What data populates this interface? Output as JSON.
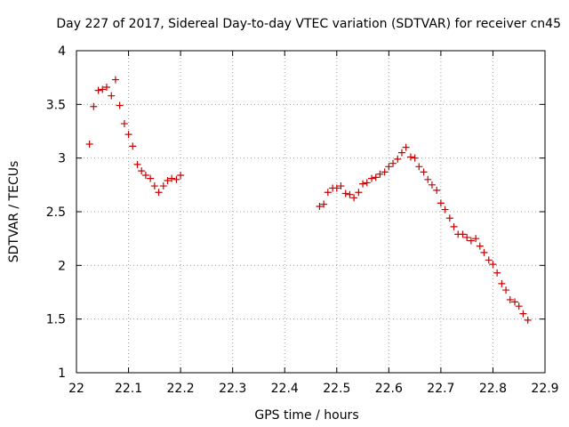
{
  "chart_data": {
    "type": "scatter",
    "title": "Day 227 of 2017, Sidereal Day-to-day VTEC variation (SDTVAR) for receiver cn45",
    "xlabel": "GPS time / hours",
    "ylabel": "SDTVAR / TECUs",
    "xlim": [
      22,
      22.9
    ],
    "ylim": [
      1,
      4
    ],
    "grid": true,
    "marker": "+",
    "color": "#cc0000",
    "xticks": [
      {
        "value": 22,
        "label": "22"
      },
      {
        "value": 22.1,
        "label": "22.1"
      },
      {
        "value": 22.2,
        "label": "22.2"
      },
      {
        "value": 22.3,
        "label": "22.3"
      },
      {
        "value": 22.4,
        "label": "22.4"
      },
      {
        "value": 22.5,
        "label": "22.5"
      },
      {
        "value": 22.6,
        "label": "22.6"
      },
      {
        "value": 22.7,
        "label": "22.7"
      },
      {
        "value": 22.8,
        "label": "22.8"
      },
      {
        "value": 22.9,
        "label": "22.9"
      }
    ],
    "yticks": [
      {
        "value": 1,
        "label": "1"
      },
      {
        "value": 1.5,
        "label": "1.5"
      },
      {
        "value": 2,
        "label": "2"
      },
      {
        "value": 2.5,
        "label": "2.5"
      },
      {
        "value": 3,
        "label": "3"
      },
      {
        "value": 3.5,
        "label": "3.5"
      },
      {
        "value": 4,
        "label": "4"
      }
    ],
    "series": [
      {
        "name": "SDTVAR",
        "x": [
          22.025,
          22.033,
          22.042,
          22.05,
          22.058,
          22.067,
          22.075,
          22.083,
          22.092,
          22.1,
          22.108,
          22.117,
          22.125,
          22.133,
          22.142,
          22.15,
          22.158,
          22.167,
          22.175,
          22.183,
          22.192,
          22.2,
          22.467,
          22.475,
          22.483,
          22.492,
          22.5,
          22.508,
          22.517,
          22.525,
          22.533,
          22.542,
          22.55,
          22.558,
          22.567,
          22.575,
          22.583,
          22.592,
          22.6,
          22.608,
          22.617,
          22.625,
          22.633,
          22.642,
          22.65,
          22.658,
          22.667,
          22.675,
          22.683,
          22.692,
          22.7,
          22.708,
          22.717,
          22.725,
          22.733,
          22.742,
          22.75,
          22.758,
          22.767,
          22.775,
          22.783,
          22.792,
          22.8,
          22.808,
          22.817,
          22.825,
          22.833,
          22.842,
          22.85,
          22.858,
          22.867
        ],
        "y": [
          3.13,
          3.48,
          3.63,
          3.64,
          3.66,
          3.58,
          3.73,
          3.49,
          3.32,
          3.22,
          3.11,
          2.94,
          2.88,
          2.84,
          2.81,
          2.74,
          2.68,
          2.74,
          2.79,
          2.81,
          2.8,
          2.84,
          2.55,
          2.57,
          2.68,
          2.72,
          2.72,
          2.74,
          2.67,
          2.66,
          2.63,
          2.68,
          2.76,
          2.77,
          2.81,
          2.82,
          2.85,
          2.87,
          2.92,
          2.95,
          2.99,
          3.05,
          3.1,
          3.01,
          3.0,
          2.92,
          2.87,
          2.8,
          2.75,
          2.7,
          2.58,
          2.52,
          2.44,
          2.36,
          2.29,
          2.29,
          2.26,
          2.23,
          2.25,
          2.18,
          2.12,
          2.05,
          2.01,
          1.93,
          1.83,
          1.77,
          1.68,
          1.66,
          1.62,
          1.55,
          1.49
        ]
      }
    ]
  }
}
